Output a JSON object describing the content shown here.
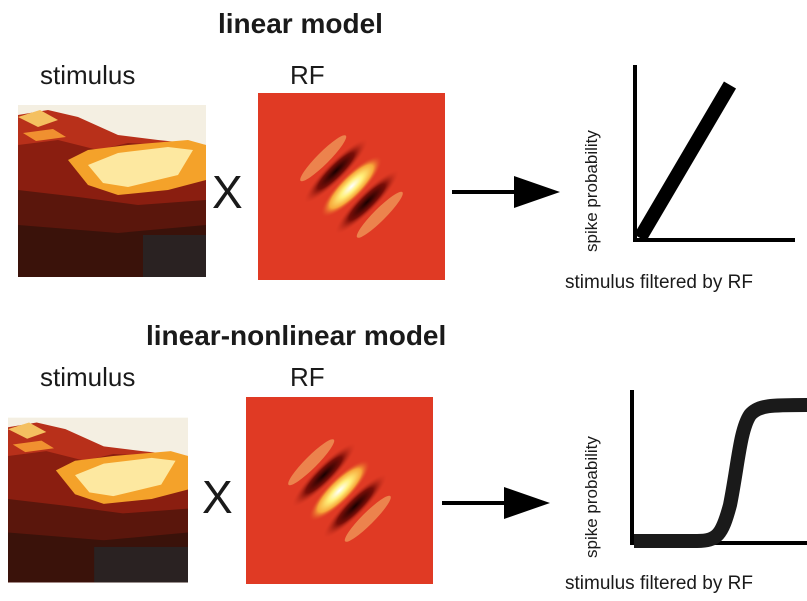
{
  "panels": [
    {
      "title": "linear model",
      "stimulus_label": "stimulus",
      "rf_label": "RF",
      "operator": "X",
      "plot": {
        "type": "linear",
        "ylabel": "spike probability",
        "xlabel": "stimulus filtered by RF"
      }
    },
    {
      "title": "linear-nonlinear model",
      "stimulus_label": "stimulus",
      "rf_label": "RF",
      "operator": "X",
      "plot": {
        "type": "sigmoid",
        "ylabel": "spike probability",
        "xlabel": "stimulus filtered by RF"
      }
    }
  ],
  "colors": {
    "rf_background": "#e03a24",
    "line": "#000000"
  }
}
